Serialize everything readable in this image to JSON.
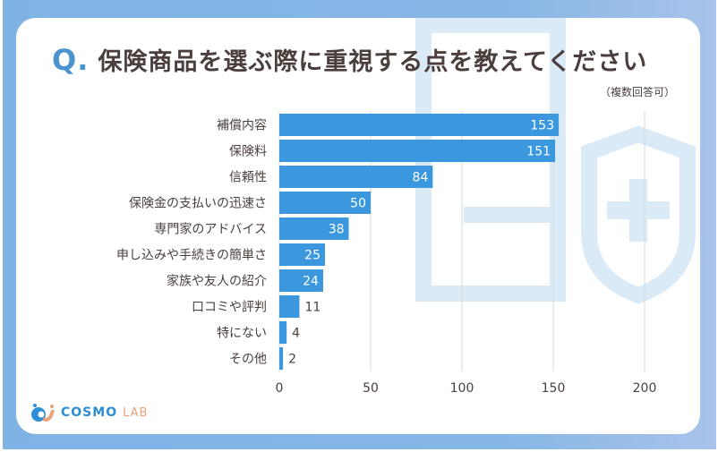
{
  "title_q": "Q.",
  "title": "保険商品を選ぶ際に重視する点を教えてください",
  "subtitle": "（複数回答可）",
  "logo": {
    "main": "COSMO",
    "sub": "LAB"
  },
  "colors": {
    "bar": "#3b97de",
    "frame": "#7fb3e6",
    "text": "#4a3f3c"
  },
  "chart_data": {
    "type": "bar",
    "orientation": "horizontal",
    "categories": [
      "補償内容",
      "保険料",
      "信頼性",
      "保険金の支払いの迅速さ",
      "専門家のアドバイス",
      "申し込みや手続きの簡単さ",
      "家族や友人の紹介",
      "口コミや評判",
      "特にない",
      "その他"
    ],
    "values": [
      153,
      151,
      84,
      50,
      38,
      25,
      24,
      11,
      4,
      2
    ],
    "xlim": [
      0,
      200
    ],
    "xticks": [
      0,
      50,
      100,
      150,
      200
    ],
    "grid": true
  }
}
